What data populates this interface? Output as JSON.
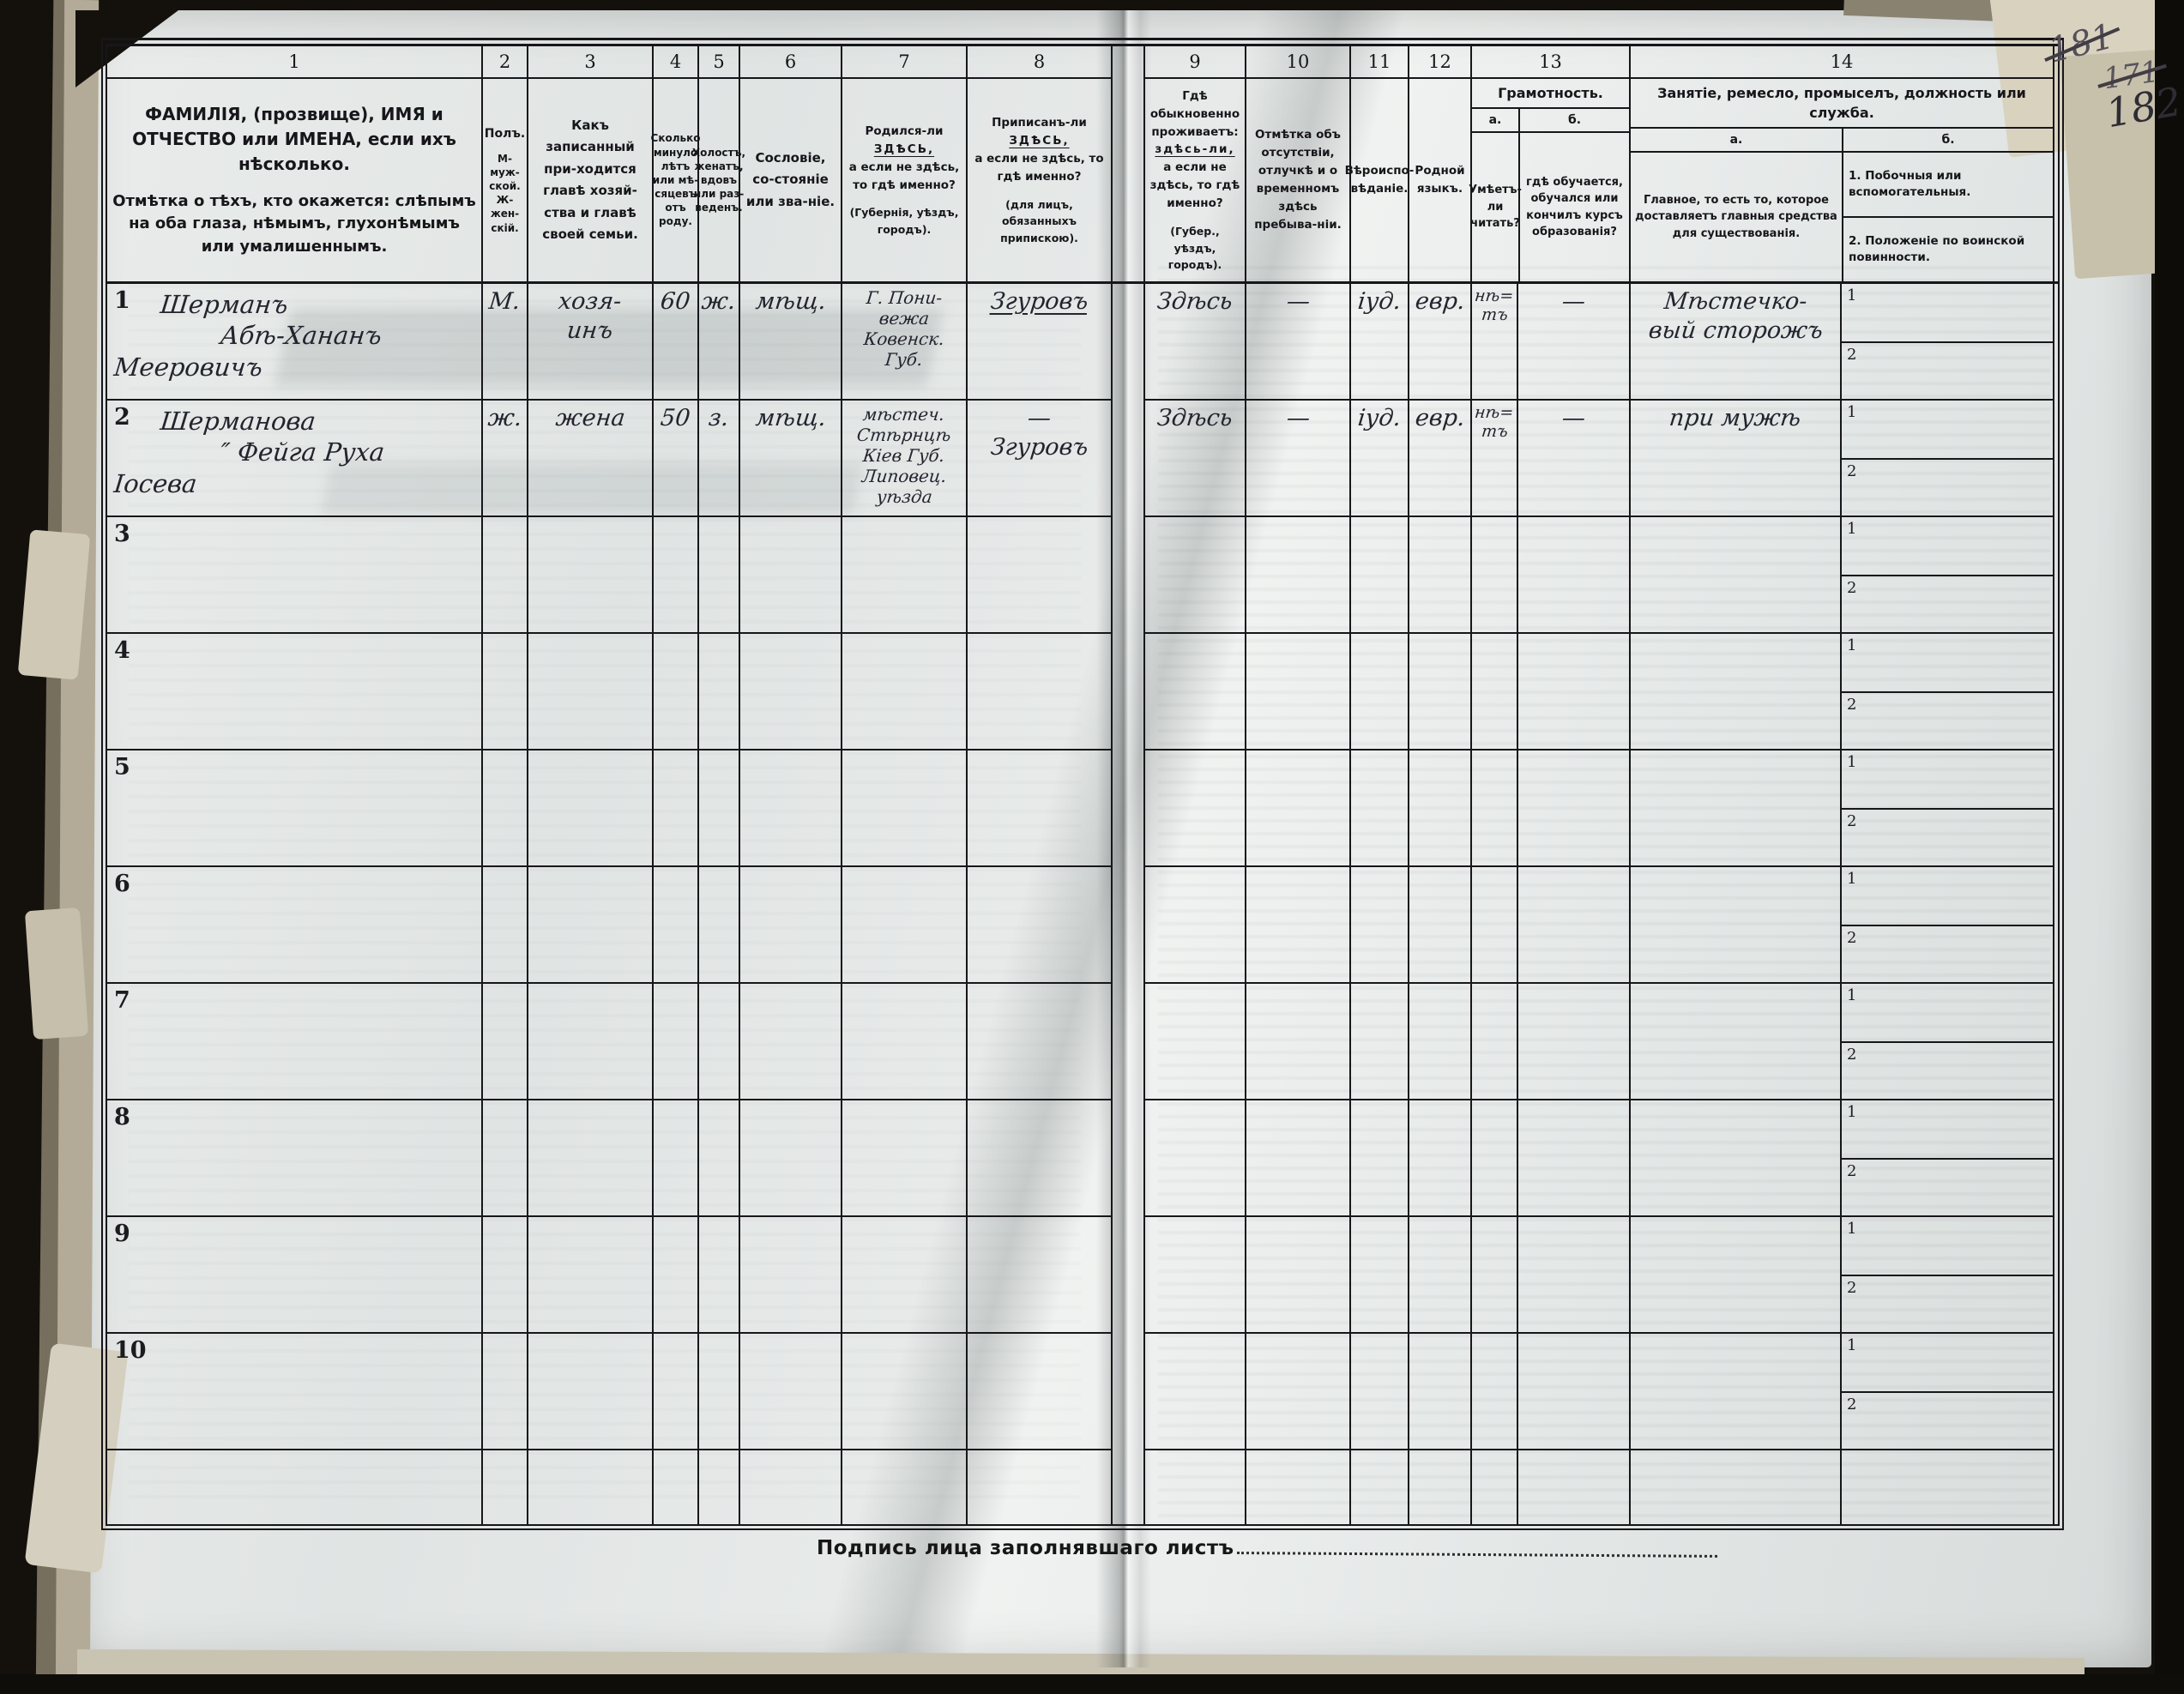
{
  "page_numbers": {
    "struck1": "181",
    "struck2": "171",
    "current": "182"
  },
  "footer": {
    "signature_label": "Подпись лица заполнявшаго листъ"
  },
  "columns": {
    "numbers": [
      "1",
      "2",
      "3",
      "4",
      "5",
      "6",
      "7",
      "8",
      "9",
      "10",
      "11",
      "12",
      "13",
      "14"
    ],
    "col1_title": "ФАМИЛІЯ, (прозвище), ИМЯ и ОТЧЕСТВО или ИМЕНА, если ихъ нѣсколько.",
    "col1_note": "Отмѣтка о тѣхъ, кто окажется: слѣпымъ на оба глаза, нѣмымъ, глухонѣмымъ или умалишеннымъ.",
    "col2_title": "Полъ.",
    "col2_sub1": "М-муж-ской.",
    "col2_sub2": "Ж-жен-скій.",
    "col3": "Какъ записанный при-ходится главѣ хозяй-ства и главѣ своей семьи.",
    "col4": "Сколько минуло лѣтъ или мѣ-сяцевъ отъ роду.",
    "col5": "Холостъ, женатъ, вдовъ или раз-веденъ.",
    "col6": "Сословіе, со-стояніе или зва-ніе.",
    "col7_pre": "Родился-ли",
    "col7_emph": "ЗДѢСЬ,",
    "col7_post": "а если не здѣсь, то гдѣ именно?",
    "col7_note": "(Губернія, уѣздъ, городъ).",
    "col8_pre": "Приписанъ-ли",
    "col8_emph": "ЗДѢСЬ,",
    "col8_post": "а если не здѣсь, то гдѣ именно?",
    "col8_note": "(для лицъ, обязанныхъ припискою).",
    "col9_pre": "Гдѣ обыкновенно проживаетъ:",
    "col9_emph": "здѣсь-ли,",
    "col9_post": "а если не здѣсь, то гдѣ именно?",
    "col9_note": "(Губер., уѣздъ, городъ).",
    "col10": "Отмѣтка объ отсутствіи, отлучкѣ и о временномъ здѣсь пребыва-ніи.",
    "col11": "Вѣроиспо-вѣданіе.",
    "col12": "Родной языкъ.",
    "col13_title": "Грамотность.",
    "col13a_letter": "а.",
    "col13b_letter": "б.",
    "col13a": "Умѣетъ-ли читать?",
    "col13b": "гдѣ обучается, обучался или кончилъ курсъ образованія?",
    "col14_title": "Занятіе, ремесло, промыселъ, должность или служба.",
    "col14a_letter": "а.",
    "col14b_letter": "б.",
    "col14a": "Главное, то есть то, которое доставляетъ главныя средства для существованія.",
    "col14b_1": "1. Побочныя или вспомогательныя.",
    "col14b_2": "2. Положеніе по воинской повинности.",
    "col14b_sub1": "1",
    "col14b_sub2": "2"
  },
  "rows": [
    {
      "num": "1",
      "name_lines": [
        "Шерманъ",
        "Абѣ-Хананъ",
        "Мееровичъ"
      ],
      "sex": "М.",
      "relation_lines": [
        "хозя-",
        "инъ"
      ],
      "age": "60",
      "marital": "ж.",
      "estate": "мѣщ.",
      "birthplace_lines": [
        "Г. Пони-",
        "вежа",
        "Ковенск.",
        "Губ."
      ],
      "registered_lines": [
        "Згуровъ"
      ],
      "registered_underline": true,
      "residence": "Здѣсь",
      "absence_mark": "—",
      "religion": "іуд.",
      "language": "евр.",
      "literacy_lines": [
        "нѣ=",
        "тъ"
      ],
      "education_mark": "—",
      "occupation_lines": [
        "Мѣстечко-",
        "вый сторожъ"
      ]
    },
    {
      "num": "2",
      "name_lines": [
        "Шерманова",
        "″  Фейга Руха",
        "Іосева"
      ],
      "sex": "ж.",
      "relation_lines": [
        "жена"
      ],
      "age": "50",
      "marital": "з.",
      "estate": "мѣщ.",
      "birthplace_lines": [
        "мѣстеч.",
        "Стѣрнцѣ",
        "Кіев Губ.",
        "Липовец.",
        "уѣзда"
      ],
      "registered_lines": [
        "—",
        "Згуровъ"
      ],
      "registered_underline": false,
      "residence": "Здѣсь",
      "absence_mark": "—",
      "religion": "іуд.",
      "language": "евр.",
      "literacy_lines": [
        "нѣ=",
        "тъ"
      ],
      "education_mark": "—",
      "occupation_lines": [
        "при мужѣ"
      ]
    },
    {
      "num": "3",
      "name_lines": [],
      "sex": "",
      "relation_lines": [],
      "age": "",
      "marital": "",
      "estate": "",
      "birthplace_lines": [],
      "registered_lines": [],
      "registered_underline": false,
      "residence": "",
      "absence_mark": "",
      "religion": "",
      "language": "",
      "literacy_lines": [],
      "education_mark": "",
      "occupation_lines": []
    },
    {
      "num": "4",
      "name_lines": [],
      "sex": "",
      "relation_lines": [],
      "age": "",
      "marital": "",
      "estate": "",
      "birthplace_lines": [],
      "registered_lines": [],
      "registered_underline": false,
      "residence": "",
      "absence_mark": "",
      "religion": "",
      "language": "",
      "literacy_lines": [],
      "education_mark": "",
      "occupation_lines": []
    },
    {
      "num": "5",
      "name_lines": [],
      "sex": "",
      "relation_lines": [],
      "age": "",
      "marital": "",
      "estate": "",
      "birthplace_lines": [],
      "registered_lines": [],
      "registered_underline": false,
      "residence": "",
      "absence_mark": "",
      "religion": "",
      "language": "",
      "literacy_lines": [],
      "education_mark": "",
      "occupation_lines": []
    },
    {
      "num": "6",
      "name_lines": [],
      "sex": "",
      "relation_lines": [],
      "age": "",
      "marital": "",
      "estate": "",
      "birthplace_lines": [],
      "registered_lines": [],
      "registered_underline": false,
      "residence": "",
      "absence_mark": "",
      "religion": "",
      "language": "",
      "literacy_lines": [],
      "education_mark": "",
      "occupation_lines": []
    },
    {
      "num": "7",
      "name_lines": [],
      "sex": "",
      "relation_lines": [],
      "age": "",
      "marital": "",
      "estate": "",
      "birthplace_lines": [],
      "registered_lines": [],
      "registered_underline": false,
      "residence": "",
      "absence_mark": "",
      "religion": "",
      "language": "",
      "literacy_lines": [],
      "education_mark": "",
      "occupation_lines": []
    },
    {
      "num": "8",
      "name_lines": [],
      "sex": "",
      "relation_lines": [],
      "age": "",
      "marital": "",
      "estate": "",
      "birthplace_lines": [],
      "registered_lines": [],
      "registered_underline": false,
      "residence": "",
      "absence_mark": "",
      "religion": "",
      "language": "",
      "literacy_lines": [],
      "education_mark": "",
      "occupation_lines": []
    },
    {
      "num": "9",
      "name_lines": [],
      "sex": "",
      "relation_lines": [],
      "age": "",
      "marital": "",
      "estate": "",
      "birthplace_lines": [],
      "registered_lines": [],
      "registered_underline": false,
      "residence": "",
      "absence_mark": "",
      "religion": "",
      "language": "",
      "literacy_lines": [],
      "education_mark": "",
      "occupation_lines": []
    },
    {
      "num": "10",
      "name_lines": [],
      "sex": "",
      "relation_lines": [],
      "age": "",
      "marital": "",
      "estate": "",
      "birthplace_lines": [],
      "registered_lines": [],
      "registered_underline": false,
      "residence": "",
      "absence_mark": "",
      "religion": "",
      "language": "",
      "literacy_lines": [],
      "education_mark": "",
      "occupation_lines": []
    }
  ]
}
